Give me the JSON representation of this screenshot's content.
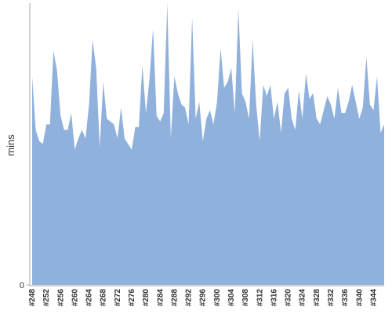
{
  "chart_data": {
    "type": "area",
    "y_label": "mins",
    "categories": [
      "#248",
      null,
      null,
      null,
      "#252",
      null,
      null,
      null,
      "#256",
      null,
      null,
      null,
      "#260",
      null,
      null,
      null,
      "#264",
      null,
      null,
      null,
      "#268",
      null,
      null,
      null,
      "#272",
      null,
      null,
      null,
      "#276",
      null,
      null,
      null,
      "#280",
      null,
      null,
      null,
      "#284",
      null,
      null,
      null,
      "#288",
      null,
      null,
      null,
      "#292",
      null,
      null,
      null,
      "#296",
      null,
      null,
      null,
      "#300",
      null,
      null,
      null,
      "#304",
      null,
      null,
      null,
      "#308",
      null,
      null,
      null,
      "#312",
      null,
      null,
      null,
      "#316",
      null,
      null,
      null,
      "#320",
      null,
      null,
      null,
      "#324",
      null,
      null,
      null,
      "#328",
      null,
      null,
      null,
      "#332",
      null,
      null,
      null,
      "#336",
      null,
      null,
      null,
      "#340",
      null,
      null,
      null,
      "#344",
      null,
      null,
      null
    ],
    "values": [
      74,
      55,
      51,
      50,
      57,
      57,
      83,
      76,
      60,
      55,
      55,
      61,
      48,
      52,
      55,
      52,
      64,
      87,
      77,
      49,
      72,
      59,
      58,
      57,
      52,
      63,
      52,
      50,
      48,
      56,
      56,
      78,
      61,
      73,
      91,
      60,
      58,
      61,
      100,
      52,
      74,
      68,
      64,
      63,
      57,
      95,
      59,
      65,
      51,
      59,
      62,
      57,
      65,
      84,
      70,
      72,
      77,
      61,
      98,
      68,
      65,
      59,
      87,
      64,
      51,
      71,
      67,
      71,
      59,
      65,
      54,
      68,
      70,
      59,
      55,
      69,
      59,
      75,
      66,
      68,
      59,
      57,
      62,
      67,
      64,
      59,
      70,
      61,
      61,
      65,
      71,
      65,
      59,
      63,
      81,
      64,
      62,
      74,
      54,
      57
    ],
    "color": "#8fb1dc",
    "ylim": [
      0,
      100
    ],
    "yticks": [
      0
    ]
  }
}
